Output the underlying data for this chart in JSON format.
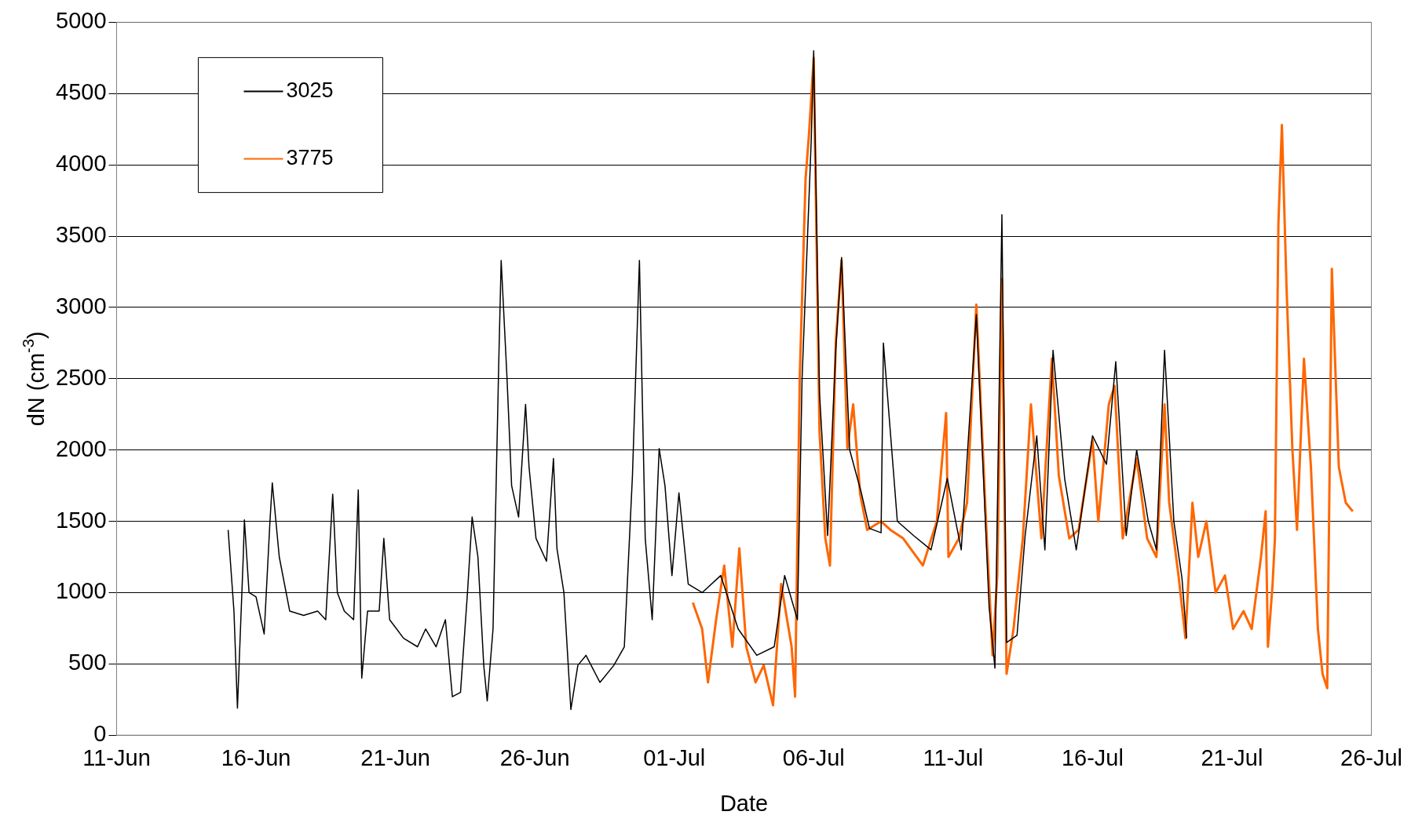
{
  "chart_data": {
    "type": "line",
    "xlabel": "Date",
    "ylabel": "dN (cm$^{-3}$)",
    "xlim": [
      "--06-11",
      "--07-26"
    ],
    "xticks": [
      {
        "value": "--06-11",
        "label": "11-Jun"
      },
      {
        "value": "--06-16",
        "label": "16-Jun"
      },
      {
        "value": "--06-21",
        "label": "21-Jun"
      },
      {
        "value": "--06-26",
        "label": "26-Jun"
      },
      {
        "value": "--07-01",
        "label": "01-Jul"
      },
      {
        "value": "--07-06",
        "label": "06-Jul"
      },
      {
        "value": "--07-11",
        "label": "11-Jul"
      },
      {
        "value": "--07-16",
        "label": "16-Jul"
      },
      {
        "value": "--07-21",
        "label": "21-Jul"
      },
      {
        "value": "--07-26",
        "label": "26-Jul"
      }
    ],
    "ylim": [
      0,
      5000
    ],
    "yticks": [
      0,
      500,
      1000,
      1500,
      2000,
      2500,
      3000,
      3500,
      4000,
      4500,
      5000
    ],
    "grid": "y",
    "legend": "top left",
    "marker": "none",
    "line_style": "solid",
    "series": [
      {
        "name": "3025",
        "color": "#000000",
        "x": [
          "--06-15T00:00",
          "--06-15T05:00",
          "--06-15T08:00",
          "--06-15T13:00",
          "--06-15T14:00",
          "--06-15T18:00",
          "--06-16T00:00",
          "--06-16T07:00",
          "--06-16T12:00",
          "--06-16T14:00",
          "--06-16T20:00",
          "--06-17T05:00",
          "--06-17T17:00",
          "--06-18T05:00",
          "--06-18T12:00",
          "--06-18T18:00",
          "--06-18T22:00",
          "--06-19T04:00",
          "--06-19T12:00",
          "--06-19T16:00",
          "--06-19T19:00",
          "--06-20T00:00",
          "--06-20T10:00",
          "--06-20T14:00",
          "--06-20T19:00",
          "--06-21T07:00",
          "--06-21T19:00",
          "--06-22T02:00",
          "--06-22T11:00",
          "--06-22T19:00",
          "--06-23T01:00",
          "--06-23T08:00",
          "--06-23T14:00",
          "--06-23T18:00",
          "--06-23T23:00",
          "--06-24T04:00",
          "--06-24T07:00",
          "--06-24T12:00",
          "--06-24T17:00",
          "--06-24T19:00",
          "--06-25T00:00",
          "--06-25T04:00",
          "--06-25T10:00",
          "--06-25T16:00",
          "--06-25T19:00",
          "--06-26T01:00",
          "--06-26T10:00",
          "--06-26T16:00",
          "--06-26T19:00",
          "--06-27T01:00",
          "--06-27T07:00",
          "--06-27T13:00",
          "--06-27T20:00",
          "--06-28T08:00",
          "--06-28T20:00",
          "--06-29T05:00",
          "--06-29T12:00",
          "--06-29T18:00",
          "--06-29T23:00",
          "--06-30T05:00",
          "--06-30T11:00",
          "--06-30T16:00",
          "--06-30T22:00",
          "--07-01T04:00",
          "--07-01T12:00",
          "--07-02T00:00",
          "--07-02T16:00",
          "--07-03T07:00",
          "--07-03T23:00",
          "--07-04T14:00",
          "--07-04T23:00",
          "--07-05T10:00",
          "--07-05T14:00",
          "--07-05T22:00",
          "--07-06T00:00",
          "--07-06T05:00",
          "--07-06T12:00",
          "--07-06T19:00",
          "--07-07T00:00",
          "--07-07T07:00",
          "--07-07T17:00",
          "--07-08T00:00",
          "--07-08T10:00",
          "--07-08T12:00",
          "--07-09T00:00",
          "--07-09T14:00",
          "--07-10T05:00",
          "--07-10T19:00",
          "--07-11T07:00",
          "--07-11T20:00",
          "--07-12T07:00",
          "--07-12T12:00",
          "--07-12T18:00",
          "--07-12T22:00",
          "--07-13T07:00",
          "--07-13T14:00",
          "--07-14T00:00",
          "--07-14T07:00",
          "--07-14T14:00",
          "--07-15T00:00",
          "--07-15T10:00",
          "--07-16T00:00",
          "--07-16T12:00",
          "--07-16T20:00",
          "--07-17T05:00",
          "--07-17T14:00",
          "--07-18T00:00",
          "--07-18T07:00",
          "--07-18T14:00",
          "--07-18T22:00",
          "--07-19T05:00",
          "--07-19T09:00"
        ],
        "values": [
          1440,
          870,
          190,
          1250,
          1510,
          1000,
          970,
          710,
          1500,
          1770,
          1250,
          870,
          840,
          870,
          810,
          1690,
          1000,
          870,
          810,
          1720,
          400,
          870,
          870,
          1380,
          810,
          680,
          620,
          745,
          620,
          810,
          270,
          300,
          1000,
          1530,
          1250,
          490,
          240,
          745,
          2640,
          3330,
          2510,
          1750,
          1530,
          2320,
          1880,
          1380,
          1220,
          1940,
          1310,
          1000,
          180,
          490,
          560,
          370,
          490,
          620,
          1820,
          3330,
          1380,
          810,
          2010,
          1750,
          1120,
          1700,
          1060,
          1000,
          1120,
          745,
          560,
          620,
          1120,
          810,
          2500,
          4200,
          4800,
          2400,
          1400,
          2700,
          3350,
          2000,
          1700,
          1450,
          1420,
          2750,
          1500,
          1400,
          1300,
          1800,
          1300,
          2950,
          900,
          470,
          3650,
          650,
          700,
          1400,
          2100,
          1300,
          2700,
          1800,
          1300,
          2100,
          1900,
          2620,
          1400,
          2000,
          1500,
          1300,
          2700,
          1500,
          1100,
          680
        ]
      },
      {
        "name": "3775",
        "color": "#ff6600",
        "x": [
          "--07-01T16:00",
          "--07-02T00:00",
          "--07-02T05:00",
          "--07-02T12:00",
          "--07-02T19:00",
          "--07-03T02:00",
          "--07-03T08:00",
          "--07-03T14:00",
          "--07-03T22:00",
          "--07-04T05:00",
          "--07-04T13:00",
          "--07-04T20:00",
          "--07-05T05:00",
          "--07-05T08:00",
          "--07-05T12:00",
          "--07-05T17:00",
          "--07-05T20:00",
          "--07-06T00:00",
          "--07-06T05:00",
          "--07-06T10:00",
          "--07-06T14:00",
          "--07-06T19:00",
          "--07-07T00:00",
          "--07-07T05:00",
          "--07-07T10:00",
          "--07-07T16:00",
          "--07-07T22:00",
          "--07-08T10:00",
          "--07-08T18:00",
          "--07-09T05:00",
          "--07-09T22:00",
          "--07-10T10:00",
          "--07-10T18:00",
          "--07-10T20:00",
          "--07-11T05:00",
          "--07-11T12:00",
          "--07-11T20:00",
          "--07-12T05:00",
          "--07-12T10:00",
          "--07-12T14:00",
          "--07-12T18:00",
          "--07-12T22:00",
          "--07-13T04:00",
          "--07-13T12:00",
          "--07-13T19:00",
          "--07-14T04:00",
          "--07-14T13:00",
          "--07-14T19:00",
          "--07-15T04:00",
          "--07-15T12:00",
          "--07-16T00:00",
          "--07-16T05:00",
          "--07-16T14:00",
          "--07-16T19:00",
          "--07-17T02:00",
          "--07-17T14:00",
          "--07-17T23:00",
          "--07-18T07:00",
          "--07-18T14:00",
          "--07-18T18:00",
          "--07-19T02:00",
          "--07-19T08:00",
          "--07-19T14:00",
          "--07-19T19:00",
          "--07-20T02:00",
          "--07-20T10:00",
          "--07-20T18:00",
          "--07-21T01:00",
          "--07-21T10:00",
          "--07-21T17:00",
          "--07-22T01:00",
          "--07-22T05:00",
          "--07-22T07:00",
          "--07-22T11:00",
          "--07-22T13:00",
          "--07-22T16:00",
          "--07-22T19:00",
          "--07-22T23:00",
          "--07-23T04:00",
          "--07-23T08:00",
          "--07-23T14:00",
          "--07-23T20:00",
          "--07-24T02:00",
          "--07-24T06:00",
          "--07-24T10:00",
          "--07-24T14:00",
          "--07-24T20:00",
          "--07-25T02:00",
          "--07-25T08:00"
        ],
        "values": [
          930,
          745,
          370,
          810,
          1190,
          620,
          1310,
          620,
          370,
          490,
          210,
          1060,
          620,
          270,
          2510,
          3900,
          4220,
          4750,
          2130,
          1380,
          1190,
          2760,
          3330,
          2010,
          2320,
          1690,
          1440,
          1500,
          1440,
          1380,
          1190,
          1500,
          2260,
          1250,
          1380,
          1630,
          3020,
          1380,
          560,
          1120,
          3200,
          430,
          745,
          1380,
          2320,
          1380,
          2640,
          1820,
          1380,
          1440,
          2070,
          1500,
          2320,
          2450,
          1380,
          1940,
          1380,
          1250,
          2320,
          1630,
          1120,
          680,
          1630,
          1250,
          1500,
          1000,
          1120,
          745,
          870,
          745,
          1250,
          1570,
          620,
          1060,
          1380,
          3590,
          4280,
          3140,
          2010,
          1440,
          2640,
          1880,
          745,
          430,
          330,
          3270,
          1880,
          1630,
          1570
        ]
      }
    ]
  }
}
